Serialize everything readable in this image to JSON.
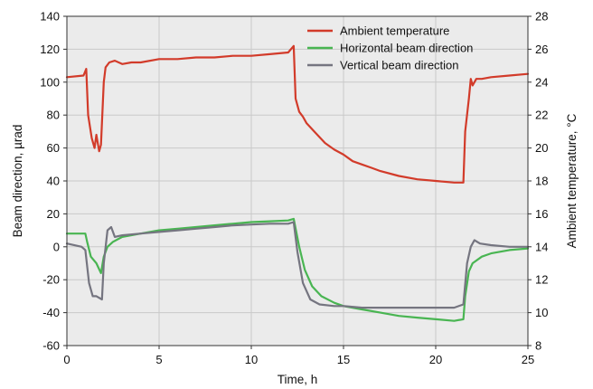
{
  "chart_data": {
    "type": "line",
    "title": "",
    "xlabel": "Time, h",
    "ylabel_left": "Beam direction, µrad",
    "ylabel_right": "Ambient temperature, °C",
    "xlim": [
      0,
      25
    ],
    "ylim_left": [
      -60,
      140
    ],
    "ylim_right": [
      8,
      28
    ],
    "x_ticks": [
      "0",
      "5",
      "10",
      "15",
      "20",
      "25"
    ],
    "y_ticks_left": [
      "-60",
      "-40",
      "-20",
      "0",
      "20",
      "40",
      "60",
      "80",
      "100",
      "120",
      "140"
    ],
    "y_ticks_right": [
      "8",
      "10",
      "12",
      "14",
      "16",
      "18",
      "20",
      "22",
      "24",
      "26",
      "28"
    ],
    "grid": true,
    "legend_position": "top-right",
    "series": [
      {
        "name": "Ambient temperature",
        "axis": "right",
        "color": "#d23b2a",
        "x": [
          0,
          0.9,
          1.05,
          1.15,
          1.35,
          1.5,
          1.6,
          1.75,
          1.85,
          2.0,
          2.1,
          2.3,
          2.6,
          3.0,
          3.5,
          4.0,
          5.0,
          6.0,
          7.0,
          8.0,
          9.0,
          10.0,
          11.0,
          12.0,
          12.3,
          12.4,
          12.6,
          12.8,
          13.0,
          13.5,
          14.0,
          14.5,
          15.0,
          15.5,
          16.0,
          16.5,
          17.0,
          18.0,
          19.0,
          20.0,
          21.0,
          21.5,
          21.6,
          21.8,
          21.9,
          22.0,
          22.2,
          22.5,
          23.0,
          24.0,
          25.0
        ],
        "y": [
          24.3,
          24.4,
          24.8,
          22.0,
          20.6,
          20.0,
          20.8,
          19.8,
          20.2,
          24.0,
          24.9,
          25.2,
          25.3,
          25.1,
          25.2,
          25.2,
          25.4,
          25.4,
          25.5,
          25.5,
          25.6,
          25.6,
          25.7,
          25.8,
          26.2,
          23.0,
          22.2,
          21.9,
          21.5,
          20.9,
          20.3,
          19.9,
          19.6,
          19.2,
          19.0,
          18.8,
          18.6,
          18.3,
          18.1,
          18.0,
          17.9,
          17.9,
          21.0,
          23.0,
          24.2,
          23.8,
          24.2,
          24.2,
          24.3,
          24.4,
          24.5
        ]
      },
      {
        "name": "Horizontal beam direction",
        "axis": "left",
        "color": "#49b552",
        "x": [
          0,
          0.5,
          1.0,
          1.1,
          1.3,
          1.6,
          1.85,
          2.0,
          2.2,
          2.5,
          3.0,
          4.0,
          5.0,
          6.0,
          7.0,
          8.0,
          9.0,
          10.0,
          11.0,
          12.0,
          12.3,
          12.6,
          12.9,
          13.3,
          13.8,
          14.5,
          15.0,
          16.0,
          17.0,
          18.0,
          19.0,
          20.0,
          21.0,
          21.5,
          21.6,
          21.8,
          22.0,
          22.5,
          23.0,
          24.0,
          25.0
        ],
        "y": [
          8,
          8,
          8,
          3,
          -6,
          -10,
          -16,
          -6,
          0,
          3,
          6,
          8,
          10,
          11,
          12,
          13,
          14,
          15,
          15.5,
          16,
          17,
          0,
          -14,
          -24,
          -30,
          -34,
          -36,
          -38,
          -40,
          -42,
          -43,
          -44,
          -45,
          -44,
          -30,
          -15,
          -10,
          -6,
          -4,
          -2,
          -1
        ]
      },
      {
        "name": "Vertical beam direction",
        "axis": "left",
        "color": "#757580",
        "x": [
          0,
          0.8,
          1.0,
          1.2,
          1.4,
          1.6,
          1.9,
          2.0,
          2.2,
          2.4,
          2.6,
          3.0,
          4.0,
          5.0,
          6.0,
          7.0,
          8.0,
          9.0,
          10.0,
          11.0,
          12.0,
          12.3,
          12.5,
          12.8,
          13.2,
          13.7,
          14.5,
          15.0,
          16.0,
          17.0,
          18.0,
          19.0,
          20.0,
          21.0,
          21.5,
          21.7,
          21.9,
          22.1,
          22.4,
          23.0,
          24.0,
          25.0
        ],
        "y": [
          2,
          0,
          -2,
          -22,
          -30,
          -30,
          -32,
          -10,
          10,
          12,
          6,
          7,
          8,
          9,
          10,
          11,
          12,
          13,
          13.5,
          14,
          14,
          15,
          -3,
          -22,
          -32,
          -35,
          -36,
          -36,
          -37,
          -37,
          -37,
          -37,
          -37,
          -37,
          -35,
          -10,
          0,
          4,
          2,
          1,
          0,
          0
        ]
      }
    ]
  }
}
